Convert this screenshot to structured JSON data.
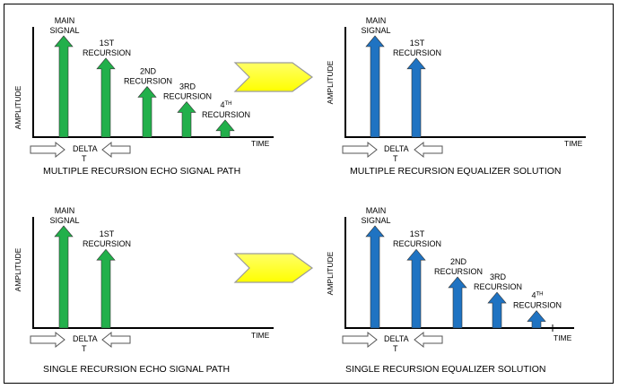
{
  "panels": {
    "tl": {
      "caption": "MULTIPLE RECURSION ECHO SIGNAL PATH",
      "axis_y": "AMPLITUDE",
      "axis_x": "TIME",
      "delta_1": "DELTA",
      "delta_2": "T",
      "arrows": [
        {
          "l1": "MAIN",
          "l2": "SIGNAL",
          "amp": 1.0
        },
        {
          "l1": "1ST",
          "l2": "RECURSION",
          "amp": 0.78
        },
        {
          "l1": "2ND",
          "l2": "RECURSION",
          "amp": 0.5
        },
        {
          "l1": "3RD",
          "l2": "RECURSION",
          "amp": 0.35
        },
        {
          "l1": "4",
          "sup": "TH",
          "l2": "RECURSION",
          "amp": 0.17
        }
      ]
    },
    "tr": {
      "caption": "MULTIPLE RECURSION EQUALIZER SOLUTION",
      "axis_y": "AMPLITUDE",
      "axis_x": "TIME",
      "delta_1": "DELTA",
      "delta_2": "T",
      "arrows": [
        {
          "l1": "MAIN",
          "l2": "SIGNAL",
          "amp": 1.0
        },
        {
          "l1": "1ST",
          "l2": "RECURSION",
          "amp": 0.78
        }
      ]
    },
    "bl": {
      "caption": "SINGLE RECURSION ECHO SIGNAL PATH",
      "axis_y": "AMPLITUDE",
      "axis_x": "TIME",
      "delta_1": "DELTA",
      "delta_2": "T",
      "arrows": [
        {
          "l1": "MAIN",
          "l2": "SIGNAL",
          "amp": 1.0
        },
        {
          "l1": "1ST",
          "l2": "RECURSION",
          "amp": 0.77
        }
      ]
    },
    "br": {
      "caption": "SINGLE RECURSION EQUALIZER SOLUTION",
      "axis_y": "AMPLITUDE",
      "axis_x": "TIME",
      "delta_1": "DELTA",
      "delta_2": "T",
      "arrows": [
        {
          "l1": "MAIN",
          "l2": "SIGNAL",
          "amp": 1.0
        },
        {
          "l1": "1ST",
          "l2": "RECURSION",
          "amp": 0.77
        },
        {
          "l1": "2ND",
          "l2": "RECURSION",
          "amp": 0.5
        },
        {
          "l1": "3RD",
          "l2": "RECURSION",
          "amp": 0.35
        },
        {
          "l1": "4",
          "sup": "TH",
          "l2": "RECURSION",
          "amp": 0.17
        }
      ]
    }
  },
  "colors": {
    "echo_arrow": "#22b04b",
    "equalizer_arrow": "#1f73c2",
    "transform_arrow": "#ffff33",
    "transform_outline": "#9a9a9a"
  }
}
